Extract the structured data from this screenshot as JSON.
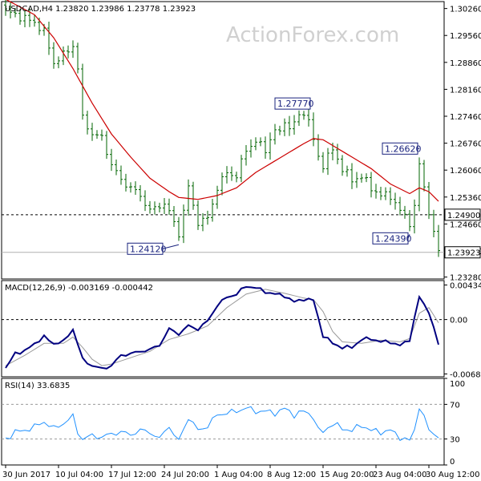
{
  "chart_data": {
    "type": "candlestick",
    "watermark": "ActionForex.com",
    "price": {
      "header": "USDCAD,H4  1.23820 1.23986 1.23778 1.23923",
      "ylim": [
        1.2323,
        1.3044
      ],
      "yticks": [
        "1.30260",
        "1.29560",
        "1.28860",
        "1.28160",
        "1.27460",
        "1.26760",
        "1.26060",
        "1.25360",
        "1.24660",
        "1.23960",
        "1.23280"
      ],
      "ytick_values": [
        1.3026,
        1.2956,
        1.2886,
        1.2816,
        1.2746,
        1.2676,
        1.2606,
        1.2536,
        1.2466,
        1.2396,
        1.2328
      ],
      "h_line_level": 1.249,
      "h_line_label": "1.24900",
      "current_price": 1.23923,
      "current_price_label": "1.23923",
      "annotations": [
        {
          "label": "1.24120",
          "value": 1.2412,
          "bar": 36
        },
        {
          "label": "1.27770",
          "value": 1.2777,
          "bar": 60
        },
        {
          "label": "1.24390",
          "value": 1.2439,
          "bar": 84
        },
        {
          "label": "1.26620",
          "value": 1.2662,
          "bar": 86
        }
      ],
      "ma_color": "#cc0000",
      "bar_color": "#006400",
      "anchors": [
        [
          0,
          1.302
        ],
        [
          3,
          1.3005
        ],
        [
          6,
          1.299
        ],
        [
          8,
          1.2965
        ],
        [
          10,
          1.2885
        ],
        [
          12,
          1.2905
        ],
        [
          14,
          1.293
        ],
        [
          15,
          1.287
        ],
        [
          16,
          1.274
        ],
        [
          18,
          1.27
        ],
        [
          20,
          1.269
        ],
        [
          22,
          1.262
        ],
        [
          24,
          1.258
        ],
        [
          26,
          1.256
        ],
        [
          28,
          1.254
        ],
        [
          30,
          1.25
        ],
        [
          33,
          1.252
        ],
        [
          35,
          1.247
        ],
        [
          36,
          1.244
        ],
        [
          38,
          1.256
        ],
        [
          40,
          1.247
        ],
        [
          42,
          1.248
        ],
        [
          44,
          1.256
        ],
        [
          46,
          1.26
        ],
        [
          48,
          1.259
        ],
        [
          50,
          1.266
        ],
        [
          52,
          1.268
        ],
        [
          54,
          1.266
        ],
        [
          56,
          1.271
        ],
        [
          57,
          1.27
        ],
        [
          58,
          1.274
        ],
        [
          59,
          1.271
        ],
        [
          60,
          1.273
        ],
        [
          62,
          1.276
        ],
        [
          63,
          1.273
        ],
        [
          65,
          1.264
        ],
        [
          66,
          1.262
        ],
        [
          68,
          1.266
        ],
        [
          70,
          1.261
        ],
        [
          72,
          1.258
        ],
        [
          74,
          1.259
        ],
        [
          76,
          1.256
        ],
        [
          78,
          1.254
        ],
        [
          80,
          1.254
        ],
        [
          82,
          1.25
        ],
        [
          84,
          1.247
        ],
        [
          85,
          1.251
        ],
        [
          86,
          1.262
        ],
        [
          87,
          1.256
        ],
        [
          88,
          1.25
        ],
        [
          89,
          1.244
        ],
        [
          90,
          1.2395
        ]
      ],
      "ma_anchors": [
        [
          0,
          1.305
        ],
        [
          6,
          1.301
        ],
        [
          10,
          1.295
        ],
        [
          14,
          1.287
        ],
        [
          18,
          1.278
        ],
        [
          22,
          1.27
        ],
        [
          26,
          1.264
        ],
        [
          30,
          1.2585
        ],
        [
          34,
          1.255
        ],
        [
          36,
          1.2535
        ],
        [
          40,
          1.253
        ],
        [
          44,
          1.254
        ],
        [
          48,
          1.256
        ],
        [
          52,
          1.26
        ],
        [
          56,
          1.263
        ],
        [
          60,
          1.266
        ],
        [
          62,
          1.2675
        ],
        [
          64,
          1.2688
        ],
        [
          66,
          1.2685
        ],
        [
          68,
          1.267
        ],
        [
          72,
          1.264
        ],
        [
          76,
          1.261
        ],
        [
          80,
          1.257
        ],
        [
          84,
          1.2545
        ],
        [
          86,
          1.256
        ],
        [
          88,
          1.255
        ],
        [
          90,
          1.2525
        ]
      ]
    },
    "macd": {
      "label": "MACD(12,26,9) -0.003169 -0.000442",
      "ylim": [
        -0.0072,
        0.0049
      ],
      "yticks": [
        "0.004346",
        "0.00",
        "-0.006843"
      ],
      "ytick_values": [
        0.004346,
        0.0,
        -0.006843
      ],
      "macd_color": "#000080",
      "signal_color": "#999999",
      "macd_anchors": [
        [
          0,
          -0.0062
        ],
        [
          2,
          -0.0042
        ],
        [
          4,
          -0.004
        ],
        [
          6,
          -0.003
        ],
        [
          8,
          -0.0022
        ],
        [
          10,
          -0.003
        ],
        [
          12,
          -0.0028
        ],
        [
          14,
          -0.0012
        ],
        [
          16,
          -0.005
        ],
        [
          18,
          -0.0058
        ],
        [
          20,
          -0.0062
        ],
        [
          22,
          -0.0058
        ],
        [
          24,
          -0.0045
        ],
        [
          26,
          -0.0043
        ],
        [
          28,
          -0.004
        ],
        [
          30,
          -0.0038
        ],
        [
          32,
          -0.0032
        ],
        [
          34,
          -0.0012
        ],
        [
          36,
          -0.0018
        ],
        [
          38,
          -0.0008
        ],
        [
          40,
          -0.0012
        ],
        [
          42,
          -0.0002
        ],
        [
          44,
          0.0018
        ],
        [
          46,
          0.0028
        ],
        [
          48,
          0.0032
        ],
        [
          50,
          0.0042
        ],
        [
          52,
          0.004
        ],
        [
          54,
          0.0035
        ],
        [
          56,
          0.0032
        ],
        [
          58,
          0.003
        ],
        [
          60,
          0.0022
        ],
        [
          62,
          0.0026
        ],
        [
          64,
          0.0024
        ],
        [
          66,
          -0.002
        ],
        [
          68,
          -0.003
        ],
        [
          70,
          -0.0035
        ],
        [
          72,
          -0.0035
        ],
        [
          74,
          -0.0025
        ],
        [
          76,
          -0.0024
        ],
        [
          78,
          -0.0028
        ],
        [
          80,
          -0.0028
        ],
        [
          82,
          -0.0033
        ],
        [
          84,
          -0.0025
        ],
        [
          86,
          0.0028
        ],
        [
          88,
          0.001
        ],
        [
          90,
          -0.0032
        ]
      ],
      "signal_anchors": [
        [
          0,
          -0.0058
        ],
        [
          4,
          -0.0045
        ],
        [
          8,
          -0.003
        ],
        [
          12,
          -0.003
        ],
        [
          14,
          -0.0022
        ],
        [
          16,
          -0.0035
        ],
        [
          18,
          -0.005
        ],
        [
          20,
          -0.0058
        ],
        [
          22,
          -0.0056
        ],
        [
          26,
          -0.0048
        ],
        [
          30,
          -0.004
        ],
        [
          34,
          -0.0025
        ],
        [
          38,
          -0.0018
        ],
        [
          42,
          -0.0008
        ],
        [
          46,
          0.0015
        ],
        [
          50,
          0.0032
        ],
        [
          54,
          0.0038
        ],
        [
          58,
          0.0033
        ],
        [
          62,
          0.0027
        ],
        [
          64,
          0.0025
        ],
        [
          66,
          0.001
        ],
        [
          68,
          -0.0015
        ],
        [
          70,
          -0.0028
        ],
        [
          74,
          -0.003
        ],
        [
          78,
          -0.0026
        ],
        [
          82,
          -0.0028
        ],
        [
          84,
          -0.0024
        ],
        [
          86,
          0.0008
        ],
        [
          88,
          0.0015
        ],
        [
          90,
          -0.0004
        ]
      ]
    },
    "rsi": {
      "label": "RSI(14) 33.6835",
      "ylim": [
        0,
        100
      ],
      "yticks": [
        "100",
        "70",
        "30",
        "0"
      ],
      "ytick_values": [
        100,
        70,
        30,
        0
      ],
      "levels": [
        70,
        30
      ],
      "color": "#1e90ff",
      "anchors": [
        [
          0,
          30
        ],
        [
          2,
          38
        ],
        [
          4,
          40
        ],
        [
          6,
          44
        ],
        [
          8,
          50
        ],
        [
          10,
          42
        ],
        [
          12,
          48
        ],
        [
          14,
          56
        ],
        [
          15,
          38
        ],
        [
          16,
          30
        ],
        [
          18,
          34
        ],
        [
          20,
          32
        ],
        [
          22,
          36
        ],
        [
          24,
          38
        ],
        [
          26,
          35
        ],
        [
          28,
          40
        ],
        [
          30,
          38
        ],
        [
          32,
          30
        ],
        [
          34,
          46
        ],
        [
          35,
          34
        ],
        [
          36,
          28
        ],
        [
          38,
          55
        ],
        [
          40,
          40
        ],
        [
          42,
          45
        ],
        [
          44,
          58
        ],
        [
          46,
          60
        ],
        [
          48,
          62
        ],
        [
          50,
          66
        ],
        [
          52,
          62
        ],
        [
          54,
          62
        ],
        [
          56,
          60
        ],
        [
          58,
          65
        ],
        [
          60,
          58
        ],
        [
          62,
          62
        ],
        [
          64,
          56
        ],
        [
          65,
          40
        ],
        [
          66,
          38
        ],
        [
          68,
          48
        ],
        [
          70,
          42
        ],
        [
          72,
          40
        ],
        [
          74,
          46
        ],
        [
          76,
          40
        ],
        [
          78,
          38
        ],
        [
          80,
          40
        ],
        [
          82,
          32
        ],
        [
          84,
          28
        ],
        [
          85,
          40
        ],
        [
          86,
          68
        ],
        [
          87,
          55
        ],
        [
          88,
          40
        ],
        [
          89,
          36
        ],
        [
          90,
          33.7
        ]
      ]
    },
    "x_labels": [
      {
        "label": "30 Jun 2017",
        "bar": 0
      },
      {
        "label": "10 Jul 04:00",
        "bar": 11
      },
      {
        "label": "17 Jul 12:00",
        "bar": 22
      },
      {
        "label": "24 Jul 20:00",
        "bar": 33
      },
      {
        "label": "1 Aug 04:00",
        "bar": 44
      },
      {
        "label": "8 Aug 12:00",
        "bar": 55
      },
      {
        "label": "15 Aug 20:00",
        "bar": 66
      },
      {
        "label": "23 Aug 04:00",
        "bar": 77
      },
      {
        "label": "30 Aug 12:00",
        "bar": 88
      }
    ],
    "n_bars": 91
  }
}
